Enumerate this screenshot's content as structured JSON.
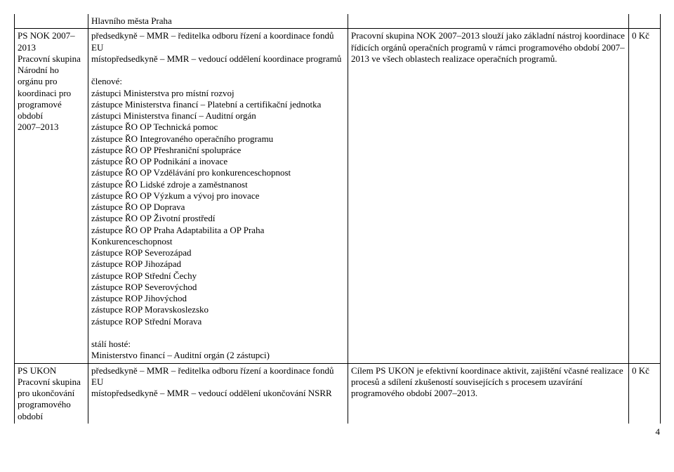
{
  "row1": {
    "col1": "PS NOK 2007–2013\nPracovní skupina Národní ho orgánu pro koordinaci pro programové období\n2007–2013",
    "col2_top": "Hlavního města Praha",
    "col2_main": "předsedkyně – MMR – ředitelka odboru řízení a koordinace fondů EU\nmístopředsedkyně – MMR – vedoucí oddělení koordinace programů\n\nčlenové:\nzástupci Ministerstva pro místní rozvoj\nzástupce Ministerstva financí – Platební a certifikační jednotka\nzástupci Ministerstva financí – Auditní orgán\nzástupce ŘO OP Technická pomoc\nzástupce ŘO Integrovaného operačního programu\nzástupce ŘO OP Přeshraniční spolupráce\nzástupce ŘO OP Podnikání a inovace\nzástupce ŘO OP Vzdělávání pro konkurenceschopnost\nzástupce ŘO Lidské zdroje a zaměstnanost\nzástupce ŘO OP Výzkum a vývoj pro inovace\nzástupce ŘO OP Doprava\nzástupce ŘO OP Životní prostředí\nzástupce ŘO OP Praha Adaptabilita a OP Praha Konkurenceschopnost\nzástupce ROP Severozápad\nzástupce ROP Jihozápad\nzástupce ROP Střední Čechy\nzástupce ROP Severovýchod\nzástupce ROP Jihovýchod\nzástupce ROP Moravskoslezsko\nzástupce ROP Střední Morava\n\nstálí hosté:\nMinisterstvo financí – Auditní orgán (2 zástupci)",
    "col3": "Pracovní skupina NOK 2007–2013 slouží jako základní nástroj koordinace řídicích orgánů operačních programů v rámci programového období 2007–2013 ve všech oblastech realizace operačních programů.",
    "col4": "0 Kč"
  },
  "row2": {
    "col1": "PS UKON\nPracovní skupina pro ukončování programového období",
    "col2": "předsedkyně – MMR – ředitelka odboru řízení a koordinace fondů EU\nmístopředsedkyně – MMR – vedoucí oddělení ukončování NSRR",
    "col3": "Cílem PS UKON je efektivní koordinace aktivit, zajištění včasné realizace procesů a sdílení zkušeností souvisejících s procesem uzavírání programového období 2007–2013.",
    "col4": "0 Kč"
  },
  "page_number": "4"
}
